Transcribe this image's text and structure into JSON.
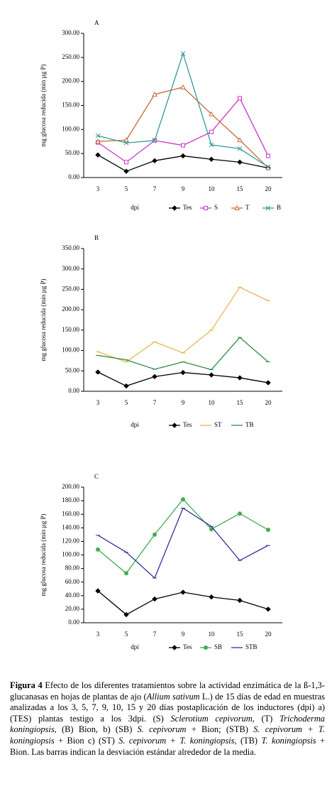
{
  "chart_data": [
    {
      "type": "line",
      "title": "A",
      "ylabel": "mg glucosa reducida (min µg P)",
      "xlabel": "dpi",
      "categories": [
        "3",
        "5",
        "7",
        "9",
        "10",
        "15",
        "20"
      ],
      "ylim": [
        0,
        300
      ],
      "yticks": [
        {
          "value": 0,
          "label": "0.00"
        },
        {
          "value": 50,
          "label": "50.00"
        },
        {
          "value": 100,
          "label": "100.00"
        },
        {
          "value": 150,
          "label": "150.00"
        },
        {
          "value": 200,
          "label": "200.00"
        },
        {
          "value": 250,
          "label": "250.00"
        },
        {
          "value": 300,
          "label": "300.00"
        }
      ],
      "series": [
        {
          "name": "Tes",
          "color": "#000000",
          "marker": "diamond",
          "values": [
            47,
            13,
            35,
            45,
            38,
            32,
            20
          ]
        },
        {
          "name": "S",
          "color": "#cc33cc",
          "marker": "square",
          "values": [
            73,
            32,
            77,
            67,
            95,
            165,
            45
          ]
        },
        {
          "name": "T",
          "color": "#cc6633",
          "marker": "triangle",
          "values": [
            75,
            78,
            173,
            188,
            132,
            78,
            20
          ]
        },
        {
          "name": "B",
          "color": "#339999",
          "marker": "x",
          "values": [
            87,
            72,
            77,
            258,
            68,
            60,
            22
          ]
        }
      ]
    },
    {
      "type": "line",
      "title": "B",
      "ylabel": "mg glucosa reducida (min µg P)",
      "xlabel": "dpi",
      "categories": [
        "3",
        "5",
        "7",
        "9",
        "10",
        "15",
        "20"
      ],
      "ylim": [
        0,
        350
      ],
      "yticks": [
        {
          "value": 0,
          "label": "0.00"
        },
        {
          "value": 50,
          "label": "50.00"
        },
        {
          "value": 100,
          "label": "100.00"
        },
        {
          "value": 150,
          "label": "150.00"
        },
        {
          "value": 200,
          "label": "200.00"
        },
        {
          "value": 250,
          "label": "250.00"
        },
        {
          "value": 300,
          "label": "300.00"
        },
        {
          "value": 350,
          "label": "350.00"
        }
      ],
      "series": [
        {
          "name": "Tes",
          "color": "#000000",
          "marker": "diamond",
          "values": [
            47,
            13,
            36,
            46,
            40,
            33,
            21
          ]
        },
        {
          "name": "ST",
          "color": "#e6b84d",
          "marker": "dash",
          "values": [
            97,
            72,
            121,
            94,
            150,
            255,
            222
          ]
        },
        {
          "name": "TB",
          "color": "#338844",
          "marker": "dash",
          "values": [
            88,
            77,
            54,
            72,
            53,
            132,
            72
          ]
        }
      ]
    },
    {
      "type": "line",
      "title": "C",
      "ylabel": "mg glucosa reducida (min µg P)",
      "xlabel": "dpi",
      "categories": [
        "3",
        "5",
        "7",
        "9",
        "10",
        "15",
        "20"
      ],
      "ylim": [
        0,
        200
      ],
      "yticks": [
        {
          "value": 0,
          "label": "0.00"
        },
        {
          "value": 20,
          "label": "20.00"
        },
        {
          "value": 40,
          "label": "40.00"
        },
        {
          "value": 60,
          "label": "60.00"
        },
        {
          "value": 80,
          "label": "80.00"
        },
        {
          "value": 100,
          "label": "100.00"
        },
        {
          "value": 120,
          "label": "120.00"
        },
        {
          "value": 140,
          "label": "140.00"
        },
        {
          "value": 160,
          "label": "160.00"
        },
        {
          "value": 180,
          "label": "180.00"
        },
        {
          "value": 200,
          "label": "200.00"
        }
      ],
      "series": [
        {
          "name": "Tes",
          "color": "#000000",
          "marker": "diamond",
          "values": [
            47,
            12,
            35,
            45,
            38,
            33,
            20
          ]
        },
        {
          "name": "SB",
          "color": "#44aa55",
          "marker": "circle",
          "values": [
            108,
            73,
            130,
            182,
            138,
            161,
            137
          ]
        },
        {
          "name": "STB",
          "color": "#333399",
          "marker": "dash",
          "values": [
            129,
            104,
            66,
            169,
            142,
            92,
            114
          ]
        }
      ]
    }
  ],
  "caption": [
    {
      "text": "Figura 4",
      "style": "bold"
    },
    {
      "text": " Efecto de los diferentes tratamientos sobre la actividad enzimática de la ß-1,3-glucanasas en hojas de plantas de ajo (",
      "style": "normal"
    },
    {
      "text": "Allium sativum",
      "style": "italic"
    },
    {
      "text": " L.) de 15 días de edad en muestras analizadas a los 3, 5, 7, 9, 10, 15 y 20 días postaplicación de los inductores (dpi)  a) (TES) plantas testigo a los 3dpi. (S) ",
      "style": "normal"
    },
    {
      "text": "Sclerotium cepivorum",
      "style": "italic"
    },
    {
      "text": ", (T) ",
      "style": "normal"
    },
    {
      "text": "Trichoderma koningiopsis",
      "style": "italic"
    },
    {
      "text": ", (B) Bion, b) (SB) ",
      "style": "normal"
    },
    {
      "text": "S. cepivorum",
      "style": "italic"
    },
    {
      "text": " + Bion; (STB) ",
      "style": "normal"
    },
    {
      "text": "S. cepivorum + T. koningiopsis",
      "style": "italic"
    },
    {
      "text": " + Bion c) (ST) ",
      "style": "normal"
    },
    {
      "text": "S. cepivorum + T. koningiopsis",
      "style": "italic"
    },
    {
      "text": ", (TB) ",
      "style": "normal"
    },
    {
      "text": "T. koningiopsis",
      "style": "italic"
    },
    {
      "text": " + Bion. Las barras indican la desviación estándar alrededor de la media.",
      "style": "normal"
    }
  ]
}
